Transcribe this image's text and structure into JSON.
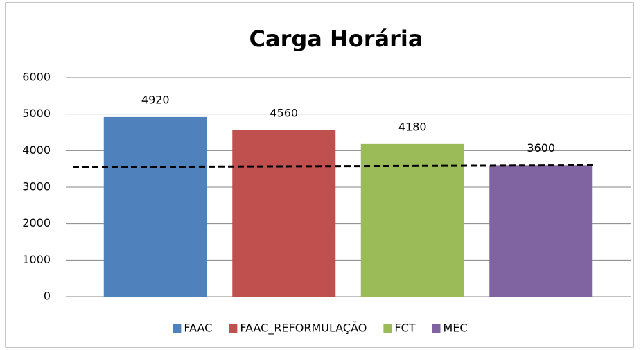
{
  "chart_data": {
    "type": "bar",
    "title": "Carga Horária",
    "categories": [
      null
    ],
    "series": [
      {
        "name": "FAAC",
        "color": "#4f81bd",
        "values": [
          4920
        ]
      },
      {
        "name": "FAAC_REFORMULAÇÃO",
        "color": "#c0504d",
        "values": [
          4560
        ]
      },
      {
        "name": "FCT",
        "color": "#9bbb59",
        "values": [
          4180
        ]
      },
      {
        "name": "MEC",
        "color": "#8064a2",
        "values": [
          3600
        ]
      }
    ],
    "trendline": [
      3550,
      3600
    ],
    "ylim": [
      0,
      6000
    ],
    "yticks": [
      0,
      1000,
      2000,
      3000,
      4000,
      5000,
      6000
    ],
    "grid": true,
    "legend": "bottom"
  }
}
